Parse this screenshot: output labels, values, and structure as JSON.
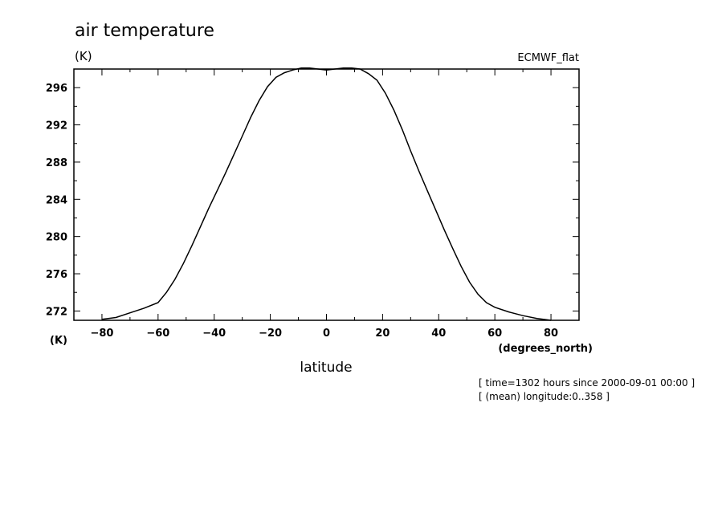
{
  "chart_data": {
    "type": "line",
    "title": "air temperature",
    "units_label": "(K)",
    "source_label": "ECMWF_flat",
    "xlabel": "latitude",
    "x_units_label": "(degrees_north)",
    "y_axis_units": "(K)",
    "xlim": [
      -90,
      90
    ],
    "ylim": [
      271,
      298
    ],
    "x_ticks": [
      -80,
      -60,
      -40,
      -20,
      0,
      20,
      40,
      60,
      80
    ],
    "y_ticks": [
      272,
      276,
      280,
      284,
      288,
      292,
      296
    ],
    "grid": false,
    "series": [
      {
        "x": [
          -80,
          -75,
          -70,
          -65,
          -60,
          -57,
          -54,
          -51,
          -48,
          -45,
          -42,
          -39,
          -36,
          -33,
          -30,
          -27,
          -24,
          -21,
          -18,
          -15,
          -12,
          -9,
          -6,
          -3,
          0,
          3,
          6,
          9,
          12,
          15,
          18,
          21,
          24,
          27,
          30,
          33,
          36,
          39,
          42,
          45,
          48,
          51,
          54,
          57,
          60,
          65,
          70,
          75,
          80
        ],
        "y": [
          271.1,
          271.3,
          271.8,
          272.3,
          272.9,
          274.0,
          275.4,
          277.1,
          279.0,
          281.0,
          283.0,
          284.9,
          286.8,
          288.8,
          290.8,
          292.8,
          294.6,
          296.1,
          297.1,
          297.6,
          297.9,
          298.1,
          298.1,
          298.0,
          297.9,
          298.0,
          298.1,
          298.1,
          298.0,
          297.5,
          296.8,
          295.4,
          293.6,
          291.5,
          289.2,
          287.0,
          284.9,
          282.8,
          280.7,
          278.7,
          276.8,
          275.1,
          273.8,
          272.9,
          272.4,
          271.9,
          271.5,
          271.2,
          271.0
        ]
      }
    ]
  },
  "annotations": {
    "time_line": "[ time=1302 hours since 2000-09-01 00:00 ]",
    "mean_line": "[ (mean) longitude:0..358 ]"
  }
}
